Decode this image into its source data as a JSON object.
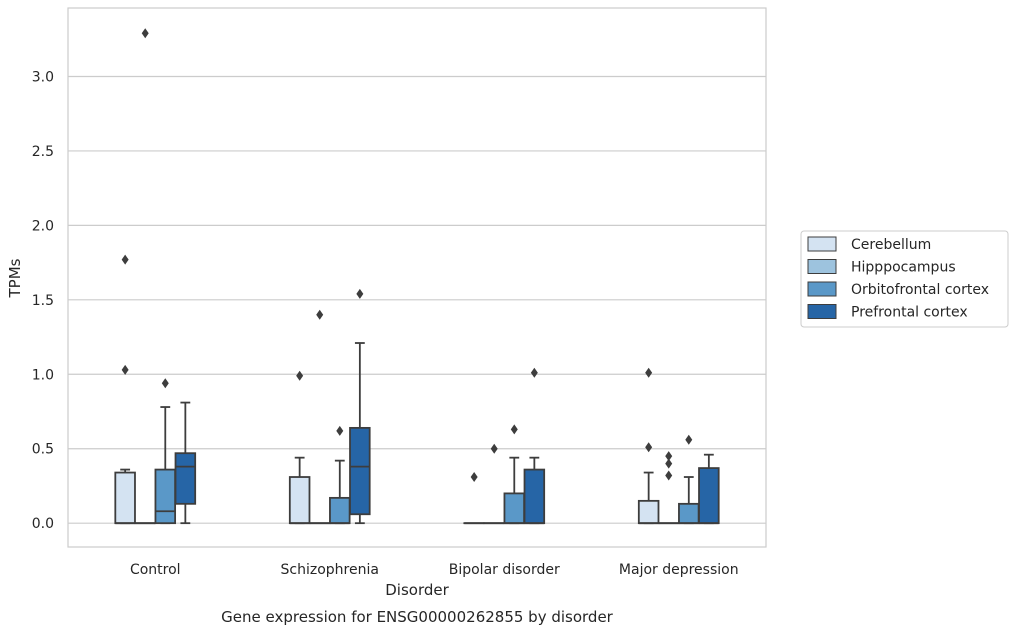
{
  "chart_data": {
    "type": "box",
    "xlabel": "Disorder",
    "ylabel": "TPMs",
    "caption": "Gene expression for ENSG00000262855 by disorder",
    "ylim": [
      -0.16,
      3.46
    ],
    "yticks": [
      "0.0",
      "0.5",
      "1.0",
      "1.5",
      "2.0",
      "2.5",
      "3.0"
    ],
    "ytick_values": [
      0,
      0.5,
      1.0,
      1.5,
      2.0,
      2.5,
      3.0
    ],
    "grid": "horizontal",
    "legend_position": "right",
    "categories": [
      "Control",
      "Schizophrenia",
      "Bipolar disorder",
      "Major depression"
    ],
    "series": [
      {
        "name": "Cerebellum",
        "color": "#d4e3f2",
        "boxes": [
          {
            "q1": 0,
            "median": 0,
            "q3": 0.34,
            "whisker_low": 0,
            "whisker_high": 0.36,
            "outliers": [
              1.03,
              1.77
            ]
          },
          {
            "q1": 0,
            "median": 0,
            "q3": 0.31,
            "whisker_low": 0,
            "whisker_high": 0.44,
            "outliers": [
              0.99
            ]
          },
          {
            "q1": 0,
            "median": 0,
            "q3": 0,
            "whisker_low": 0,
            "whisker_high": 0,
            "outliers": [
              0.31
            ]
          },
          {
            "q1": 0,
            "median": 0,
            "q3": 0.15,
            "whisker_low": 0,
            "whisker_high": 0.34,
            "outliers": [
              0.51,
              1.01
            ]
          }
        ]
      },
      {
        "name": "Hipppocampus",
        "color": "#9dc3de",
        "boxes": [
          {
            "q1": 0,
            "median": 0,
            "q3": 0,
            "whisker_low": 0,
            "whisker_high": 0,
            "outliers": [
              3.29
            ]
          },
          {
            "q1": 0,
            "median": 0,
            "q3": 0,
            "whisker_low": 0,
            "whisker_high": 0,
            "outliers": [
              1.4
            ]
          },
          {
            "q1": 0,
            "median": 0,
            "q3": 0,
            "whisker_low": 0,
            "whisker_high": 0,
            "outliers": [
              0.5
            ]
          },
          {
            "q1": 0,
            "median": 0,
            "q3": 0,
            "whisker_low": 0,
            "whisker_high": 0,
            "outliers": [
              0.32,
              0.4,
              0.45
            ]
          }
        ]
      },
      {
        "name": "Orbitofrontal cortex",
        "color": "#5a98c8",
        "boxes": [
          {
            "q1": 0,
            "median": 0.08,
            "q3": 0.36,
            "whisker_low": 0,
            "whisker_high": 0.78,
            "outliers": [
              0.94
            ]
          },
          {
            "q1": 0,
            "median": 0,
            "q3": 0.17,
            "whisker_low": 0,
            "whisker_high": 0.42,
            "outliers": [
              0.62
            ]
          },
          {
            "q1": 0,
            "median": 0,
            "q3": 0.2,
            "whisker_low": 0,
            "whisker_high": 0.44,
            "outliers": [
              0.63
            ]
          },
          {
            "q1": 0,
            "median": 0,
            "q3": 0.13,
            "whisker_low": 0,
            "whisker_high": 0.31,
            "outliers": [
              0.56
            ]
          }
        ]
      },
      {
        "name": "Prefrontal cortex",
        "color": "#2665a6",
        "boxes": [
          {
            "q1": 0.13,
            "median": 0.38,
            "q3": 0.47,
            "whisker_low": 0,
            "whisker_high": 0.81,
            "outliers": []
          },
          {
            "q1": 0.06,
            "median": 0.38,
            "q3": 0.64,
            "whisker_low": 0,
            "whisker_high": 1.21,
            "outliers": [
              1.54
            ]
          },
          {
            "q1": 0,
            "median": 0,
            "q3": 0.36,
            "whisker_low": 0,
            "whisker_high": 0.44,
            "outliers": [
              1.01
            ]
          },
          {
            "q1": 0,
            "median": 0,
            "q3": 0.37,
            "whisker_low": 0,
            "whisker_high": 0.46,
            "outliers": []
          }
        ]
      }
    ]
  }
}
